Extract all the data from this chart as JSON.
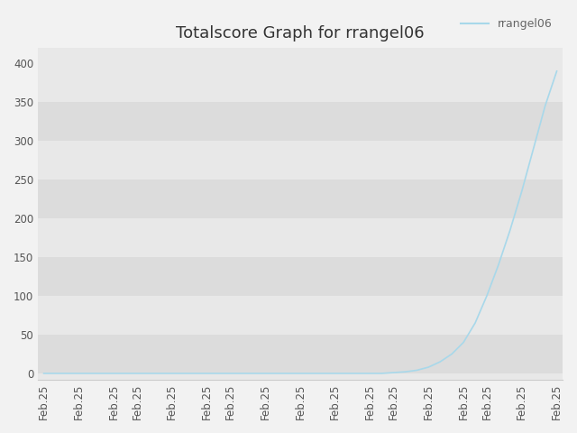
{
  "title": "Totalscore Graph for rrangel06",
  "legend_label": "rrangel06",
  "line_color": "#a8d8ea",
  "plot_bg_color": "#e8e8e8",
  "fig_bg_color": "#f2f2f2",
  "band_colors": [
    "#dcdcdc",
    "#e8e8e8"
  ],
  "ylim": [
    -8,
    420
  ],
  "yticks": [
    0,
    50,
    100,
    150,
    200,
    250,
    300,
    350,
    400
  ],
  "title_fontsize": 13,
  "tick_fontsize": 8.5,
  "legend_fontsize": 9,
  "num_xticks": 17,
  "xtick_label": "Feb.25",
  "score_values": [
    0,
    0,
    0,
    0,
    0,
    0,
    0,
    0,
    0,
    0,
    0,
    0,
    0,
    0,
    0,
    0,
    0,
    0,
    0,
    0,
    0,
    0,
    0,
    0,
    0,
    0,
    0,
    0,
    0,
    0,
    1,
    2,
    4,
    8,
    15,
    25,
    40,
    65,
    100,
    140,
    185,
    235,
    290,
    345,
    390
  ]
}
